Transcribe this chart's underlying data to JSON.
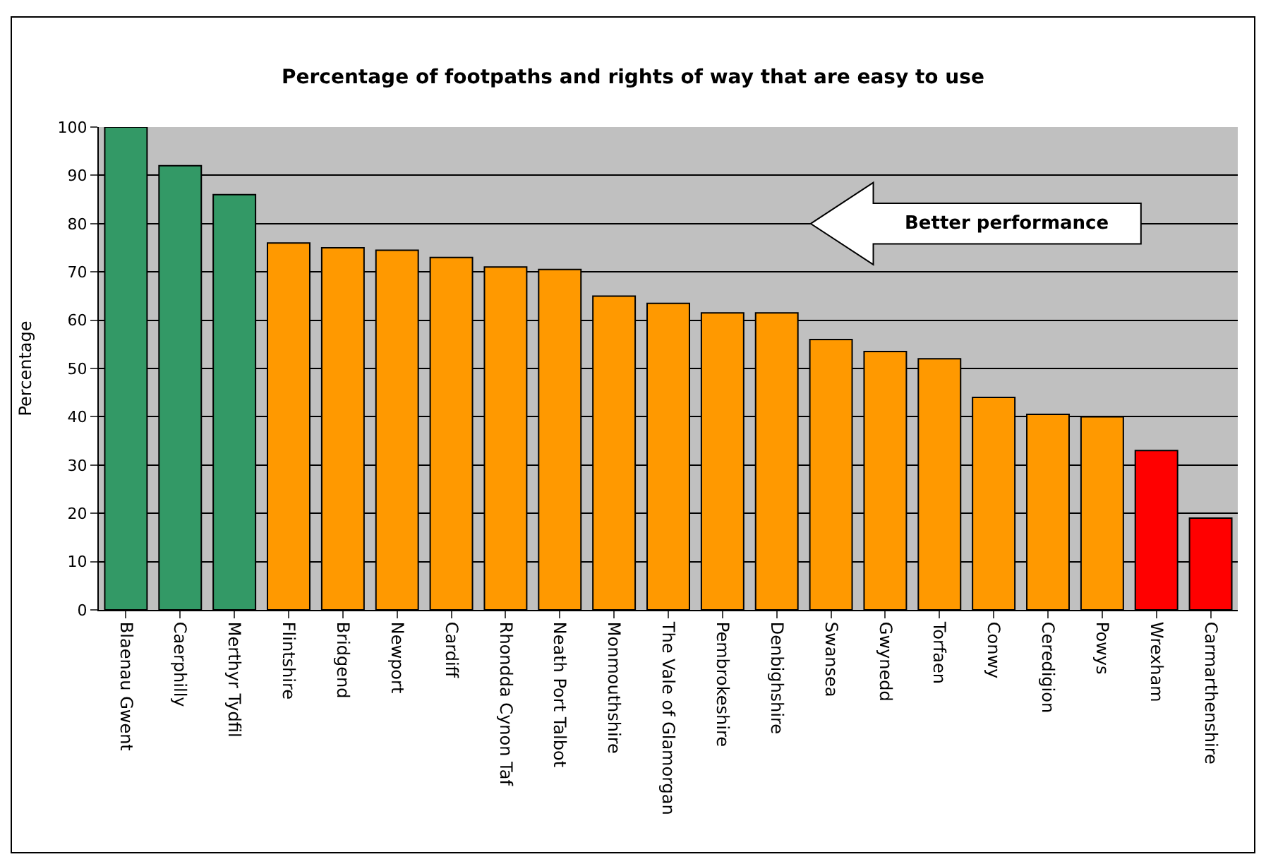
{
  "chart_data": {
    "type": "bar",
    "title": "Percentage of footpaths and rights of way that are easy to use",
    "ylabel": "Percentage",
    "categories": [
      "Blaenau Gwent",
      "Caerphilly",
      "Merthyr Tydfil",
      "Flintshire",
      "Bridgend",
      "Newport",
      "Cardiff",
      "Rhondda Cynon Taf",
      "Neath Port Talbot",
      "Monmouthshire",
      "The Vale of Glamorgan",
      "Pembrokeshire",
      "Denbighshire",
      "Swansea",
      "Gwynedd",
      "Torfaen",
      "Conwy",
      "Ceredigion",
      "Powys",
      "Wrexham",
      "Carmarthenshire"
    ],
    "values": [
      100,
      92,
      86,
      76,
      75,
      74.5,
      73,
      71,
      70.5,
      65,
      63.5,
      61.5,
      61.5,
      56,
      53.5,
      52,
      44,
      40.5,
      40,
      33,
      19
    ],
    "colors": [
      "#339966",
      "#339966",
      "#339966",
      "#ff9900",
      "#ff9900",
      "#ff9900",
      "#ff9900",
      "#ff9900",
      "#ff9900",
      "#ff9900",
      "#ff9900",
      "#ff9900",
      "#ff9900",
      "#ff9900",
      "#ff9900",
      "#ff9900",
      "#ff9900",
      "#ff9900",
      "#ff9900",
      "#ff0000",
      "#ff0000"
    ],
    "ylim": [
      0,
      100
    ],
    "yticks": [
      0,
      10,
      20,
      30,
      40,
      50,
      60,
      70,
      80,
      90,
      100
    ],
    "grid": "y",
    "annotations": [
      "Better performance"
    ]
  }
}
